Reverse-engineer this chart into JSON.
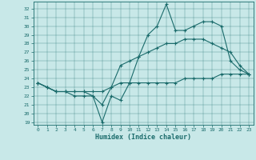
{
  "xlabel": "Humidex (Indice chaleur)",
  "bg_color": "#c8e8e8",
  "line_color": "#1a6b6b",
  "marker": "+",
  "x_ticks": [
    0,
    1,
    2,
    3,
    4,
    5,
    6,
    7,
    8,
    9,
    10,
    11,
    12,
    13,
    14,
    15,
    16,
    17,
    18,
    19,
    20,
    21,
    22,
    23
  ],
  "y_ticks": [
    19,
    20,
    21,
    22,
    23,
    24,
    25,
    26,
    27,
    28,
    29,
    30,
    31,
    32
  ],
  "ylim": [
    18.7,
    32.8
  ],
  "xlim": [
    -0.5,
    23.5
  ],
  "lines": [
    [
      23.5,
      23.0,
      22.5,
      22.5,
      22.0,
      22.0,
      22.0,
      19.0,
      22.0,
      21.5,
      23.5,
      26.5,
      29.0,
      30.0,
      32.5,
      29.5,
      29.5,
      30.0,
      30.5,
      30.5,
      30.0,
      26.0,
      25.0,
      24.5
    ],
    [
      23.5,
      23.0,
      22.5,
      22.5,
      22.5,
      22.5,
      22.0,
      21.0,
      23.0,
      25.5,
      26.0,
      26.5,
      27.0,
      27.5,
      28.0,
      28.0,
      28.5,
      28.5,
      28.5,
      28.0,
      27.5,
      27.0,
      25.5,
      24.5
    ],
    [
      23.5,
      23.0,
      22.5,
      22.5,
      22.5,
      22.5,
      22.5,
      22.5,
      23.0,
      23.5,
      23.5,
      23.5,
      23.5,
      23.5,
      23.5,
      23.5,
      24.0,
      24.0,
      24.0,
      24.0,
      24.5,
      24.5,
      24.5,
      24.5
    ]
  ]
}
